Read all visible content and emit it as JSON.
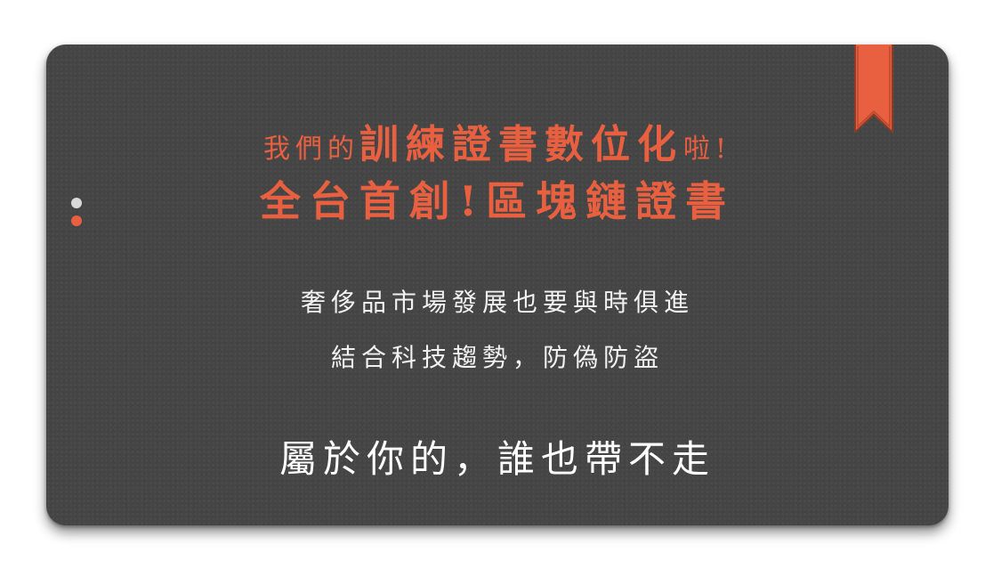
{
  "headline": {
    "line1_prefix": "我們的",
    "line1_emphasis": "訓練證書數位化",
    "line1_suffix": "啦!",
    "line2": "全台首創!區塊鏈證書"
  },
  "body": {
    "line1": "奢侈品市場發展也要與時俱進",
    "line2": "結合科技趨勢，防偽防盜"
  },
  "tagline": "屬於你的，誰也帶不走",
  "decor": {
    "ribbon_icon": "bookmark-ribbon-icon",
    "dots_icon": "pagination-dots-icon"
  },
  "colors": {
    "card_background": "#454545",
    "accent": "#e8603f",
    "text": "#f2f2f2",
    "dot_inactive": "#d9d9d9"
  }
}
